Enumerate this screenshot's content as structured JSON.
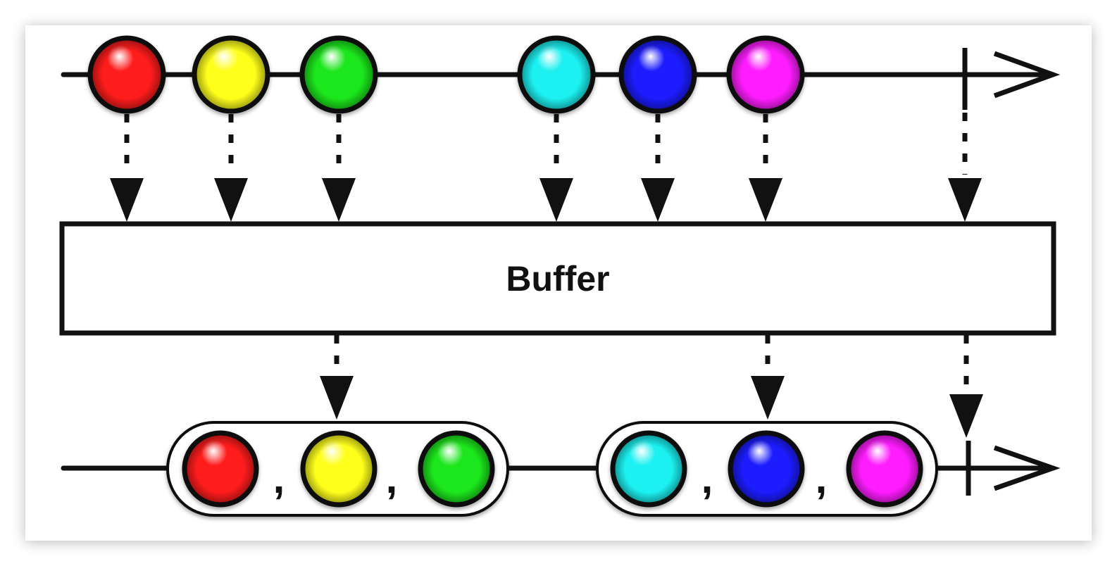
{
  "operator": {
    "label": "Buffer"
  },
  "colors": {
    "red": "#ff1a1a",
    "yellow": "#ffff1a",
    "green": "#1ee61e",
    "cyan": "#1af0f0",
    "blue": "#1a1aff",
    "magenta": "#ff1aff",
    "line": "#111111"
  },
  "input_stream": {
    "items": [
      "red",
      "yellow",
      "green",
      "cyan",
      "blue",
      "magenta"
    ],
    "completes": true
  },
  "output_stream": {
    "buffers": [
      {
        "items": [
          "red",
          "yellow",
          "green"
        ],
        "separator": ","
      },
      {
        "items": [
          "cyan",
          "blue",
          "magenta"
        ],
        "separator": ","
      }
    ],
    "completes": true
  }
}
